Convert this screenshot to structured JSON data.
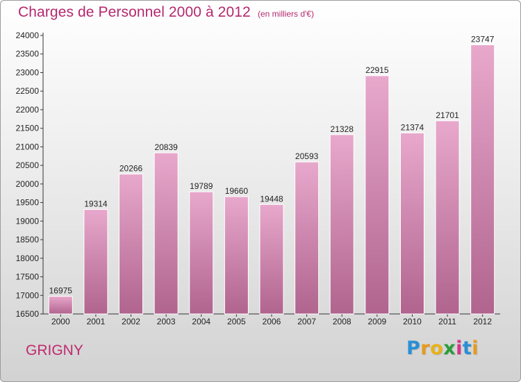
{
  "header": {
    "title": "Charges de Personnel 2000 à 2012",
    "subtitle": "(en milliers d'€)"
  },
  "footer": {
    "city": "GRIGNY",
    "logo_letters": [
      "P",
      "r",
      "o",
      "x",
      "i",
      "t",
      "i"
    ]
  },
  "colors": {
    "title": "#b4286e",
    "bar_top": "#e8a8cc",
    "bar_bottom": "#b0648e",
    "logo": [
      "#2a8fd6",
      "#e89a1a",
      "#e8b21a",
      "#2a9d3a",
      "#d8338a",
      "#2a8fd6",
      "#e89a1a"
    ]
  },
  "chart_data": {
    "type": "bar",
    "title": "Charges de Personnel 2000 à 2012",
    "subtitle": "(en milliers d'€)",
    "categories": [
      "2000",
      "2001",
      "2002",
      "2003",
      "2004",
      "2005",
      "2006",
      "2007",
      "2008",
      "2009",
      "2010",
      "2011",
      "2012"
    ],
    "values": [
      16975,
      19314,
      20266,
      20839,
      19789,
      19660,
      19448,
      20593,
      21328,
      22915,
      21374,
      21701,
      23747
    ],
    "ylim": [
      16500,
      24000
    ],
    "yticks": [
      16500,
      17000,
      17500,
      18000,
      18500,
      19000,
      19500,
      20000,
      20500,
      21000,
      21500,
      22000,
      22500,
      23000,
      23500,
      24000
    ],
    "grid": false,
    "xlabel": "",
    "ylabel": ""
  }
}
